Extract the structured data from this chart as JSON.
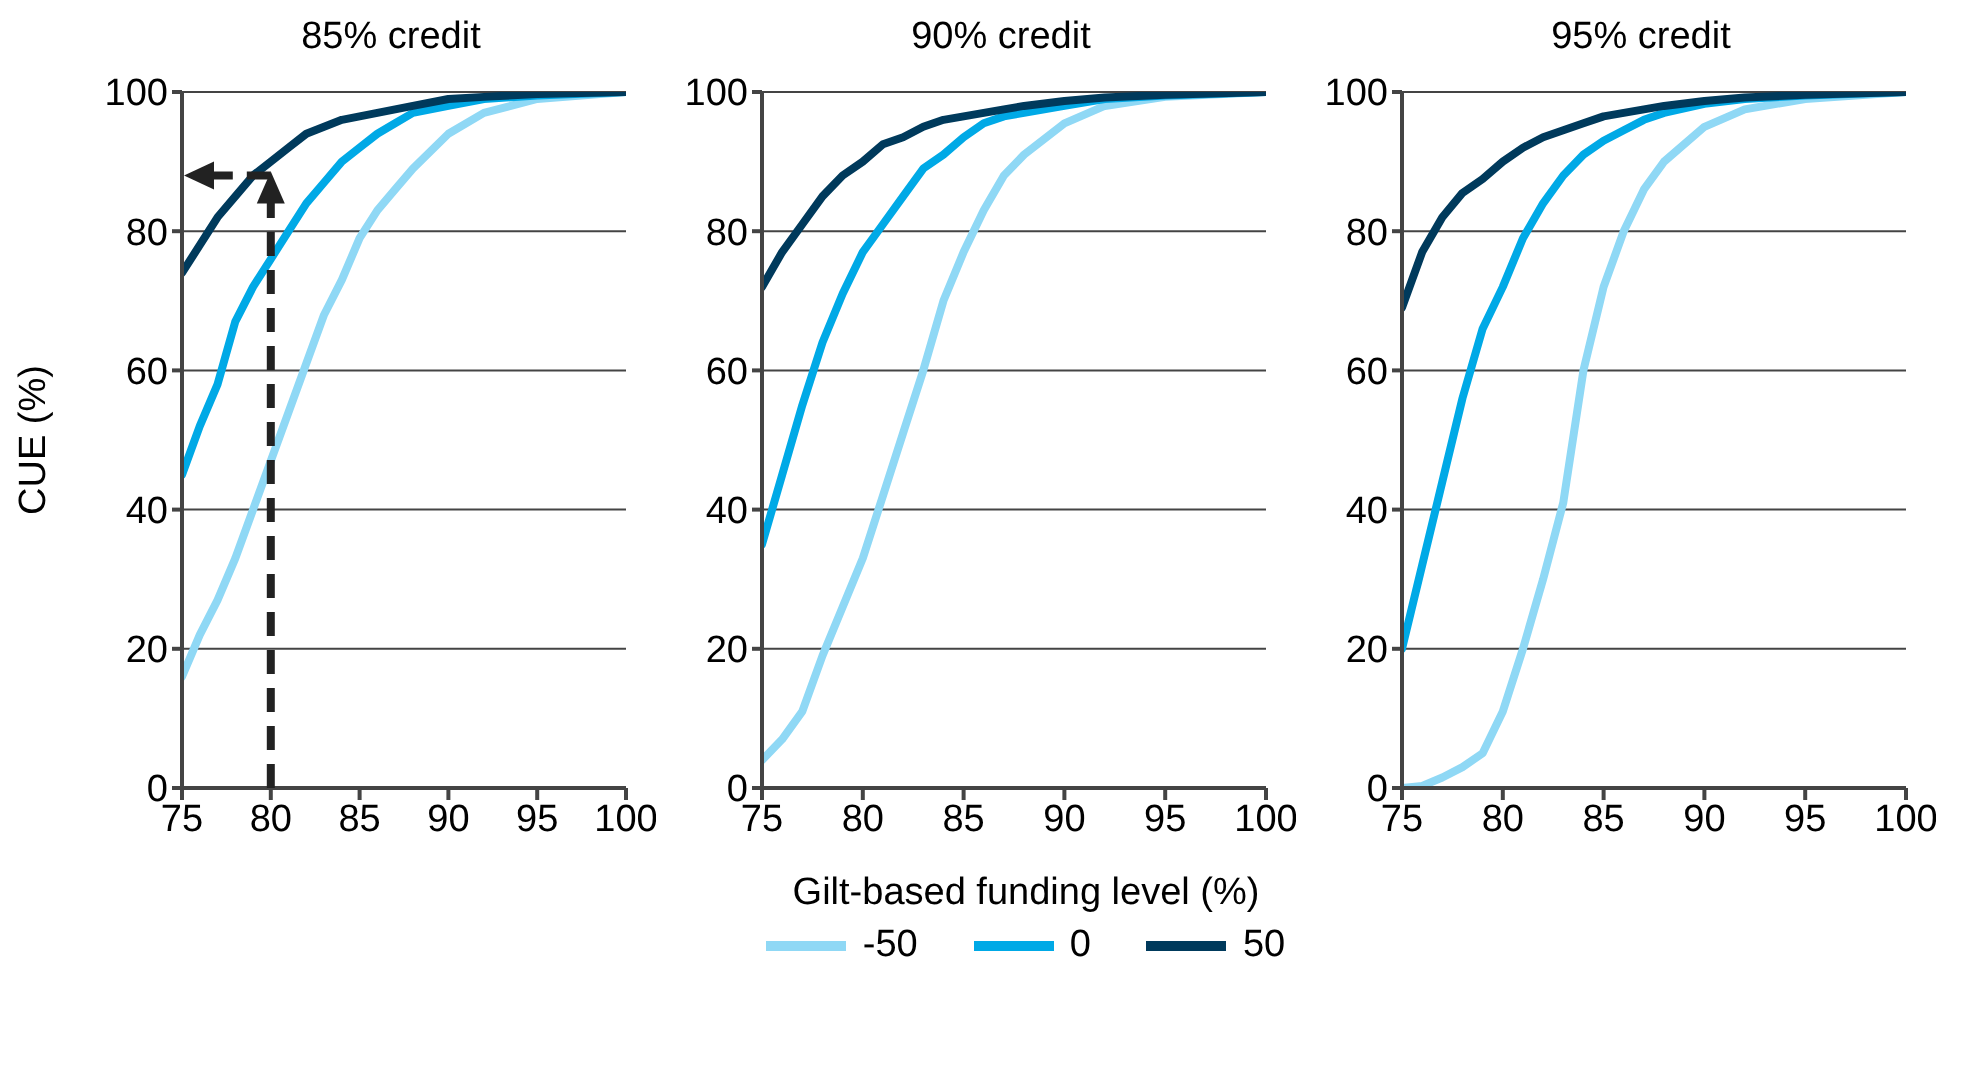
{
  "chart_data": [
    {
      "type": "line",
      "title": "85% credit",
      "ylabel": "CUE (%)",
      "legend": "bottom",
      "ref_lines": [
        {
          "axis": "x",
          "value": 80,
          "color": "#222222",
          "line_style": "dashed"
        },
        {
          "axis": "y",
          "value": 88,
          "color": "#222222",
          "line_style": "dashed"
        }
      ],
      "x": [
        75,
        76,
        77,
        78,
        79,
        80,
        81,
        82,
        83,
        84,
        85,
        86,
        87,
        88,
        90,
        92,
        95,
        100
      ],
      "xlim": [
        75,
        100
      ],
      "xticks": [
        75,
        80,
        85,
        90,
        95,
        100
      ],
      "ylim": [
        0,
        100
      ],
      "yticks": [
        0,
        20,
        40,
        60,
        80,
        100
      ],
      "grid": "y",
      "series": [
        {
          "name": "-50",
          "color": "#8fd8f5",
          "values": [
            16,
            22,
            27,
            33,
            40,
            47,
            54,
            61,
            68,
            73,
            79,
            83,
            86,
            89,
            94,
            97,
            99,
            100
          ]
        },
        {
          "name": "0",
          "color": "#00a9e6",
          "values": [
            45,
            52,
            58,
            67,
            72,
            76,
            80,
            84,
            87,
            90,
            92,
            94,
            95.5,
            97,
            98,
            99,
            99.5,
            100
          ]
        },
        {
          "name": "50",
          "color": "#003a5c",
          "values": [
            74,
            78,
            82,
            85,
            88,
            90,
            92,
            94,
            95,
            96,
            96.5,
            97,
            97.5,
            98,
            99,
            99.3,
            99.7,
            100
          ]
        }
      ]
    },
    {
      "type": "line",
      "title": "90% credit",
      "xlabel": "Gilt-based funding level (%)",
      "x": [
        75,
        76,
        77,
        78,
        79,
        80,
        81,
        82,
        83,
        84,
        85,
        86,
        87,
        88,
        90,
        92,
        95,
        100
      ],
      "xlim": [
        75,
        100
      ],
      "xticks": [
        75,
        80,
        85,
        90,
        95,
        100
      ],
      "ylim": [
        0,
        100
      ],
      "yticks": [
        0,
        20,
        40,
        60,
        80,
        100
      ],
      "grid": "y",
      "series": [
        {
          "name": "-50",
          "color": "#8fd8f5",
          "values": [
            4,
            7,
            11,
            19,
            26,
            33,
            42,
            51,
            60,
            70,
            77,
            83,
            88,
            91,
            95.5,
            98,
            99.3,
            100
          ]
        },
        {
          "name": "0",
          "color": "#00a9e6",
          "values": [
            35,
            45,
            55,
            64,
            71,
            77,
            81,
            85,
            89,
            91,
            93.5,
            95.5,
            96.5,
            97,
            98,
            99,
            99.5,
            100
          ]
        },
        {
          "name": "50",
          "color": "#003a5c",
          "values": [
            72,
            77,
            81,
            85,
            88,
            90,
            92.5,
            93.5,
            95,
            96,
            96.5,
            97,
            97.5,
            98,
            98.7,
            99.2,
            99.6,
            100
          ]
        }
      ]
    },
    {
      "type": "line",
      "title": "95% credit",
      "x": [
        75,
        76,
        77,
        78,
        79,
        80,
        81,
        82,
        83,
        84,
        85,
        86,
        87,
        88,
        90,
        92,
        95,
        100
      ],
      "xlim": [
        75,
        100
      ],
      "xticks": [
        75,
        80,
        85,
        90,
        95,
        100
      ],
      "ylim": [
        0,
        100
      ],
      "yticks": [
        0,
        20,
        40,
        60,
        80,
        100
      ],
      "grid": "y",
      "series": [
        {
          "name": "-50",
          "color": "#8fd8f5",
          "values": [
            0,
            0.3,
            1.5,
            3,
            5,
            11,
            20,
            30,
            41,
            60,
            72,
            80,
            86,
            90,
            95,
            97.5,
            99,
            100
          ]
        },
        {
          "name": "0",
          "color": "#00a9e6",
          "values": [
            20,
            32,
            44,
            56,
            66,
            72,
            79,
            84,
            88,
            91,
            93,
            94.5,
            96,
            97,
            98.3,
            99,
            99.5,
            100
          ]
        },
        {
          "name": "50",
          "color": "#003a5c",
          "values": [
            69,
            77,
            82,
            85.5,
            87.5,
            90,
            92,
            93.5,
            94.5,
            95.5,
            96.5,
            97,
            97.5,
            98,
            98.7,
            99.2,
            99.6,
            100
          ]
        }
      ]
    }
  ]
}
